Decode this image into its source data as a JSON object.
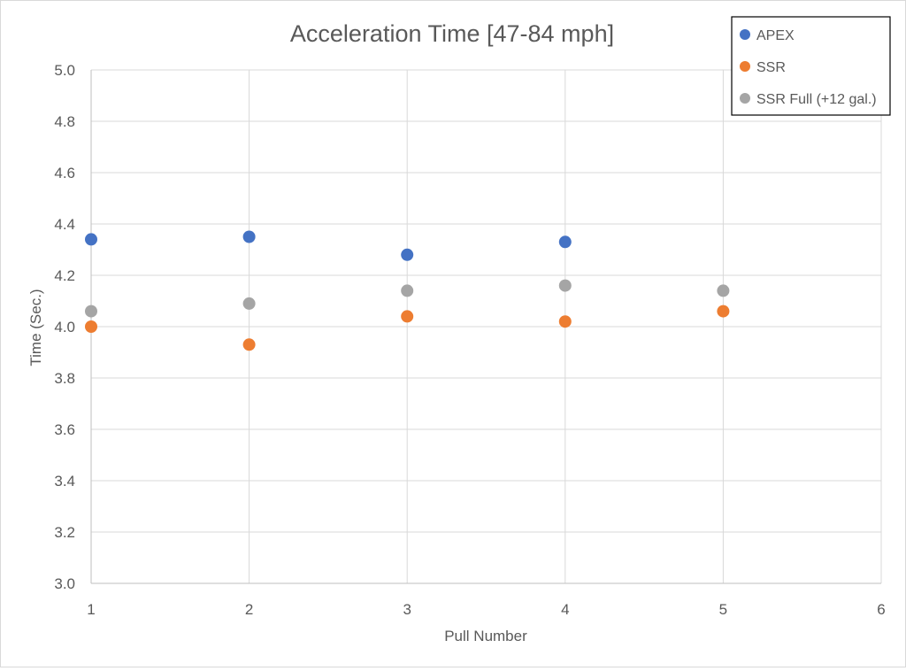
{
  "chart_data": {
    "type": "scatter",
    "title": "Acceleration Time [47-84 mph]",
    "xlabel": "Pull Number",
    "ylabel": "Time (Sec.)",
    "xlim": [
      1,
      6
    ],
    "ylim": [
      3.0,
      5.0
    ],
    "xticks": [
      "1",
      "2",
      "3",
      "4",
      "5",
      "6"
    ],
    "yticks": [
      "3.0",
      "3.2",
      "3.4",
      "3.6",
      "3.8",
      "4.0",
      "4.2",
      "4.4",
      "4.6",
      "4.8",
      "5.0"
    ],
    "grid": true,
    "legend_position": "top-right",
    "series": [
      {
        "name": "APEX",
        "color": "#4472C4",
        "x": [
          1,
          2,
          3,
          4
        ],
        "y": [
          4.34,
          4.35,
          4.28,
          4.33
        ]
      },
      {
        "name": "SSR",
        "color": "#ED7D31",
        "x": [
          1,
          2,
          3,
          4,
          5
        ],
        "y": [
          4.0,
          3.93,
          4.04,
          4.02,
          4.06
        ]
      },
      {
        "name": "SSR Full (+12 gal.)",
        "color": "#A5A5A5",
        "x": [
          1,
          2,
          3,
          4,
          5
        ],
        "y": [
          4.06,
          4.09,
          4.14,
          4.16,
          4.14
        ]
      }
    ]
  }
}
